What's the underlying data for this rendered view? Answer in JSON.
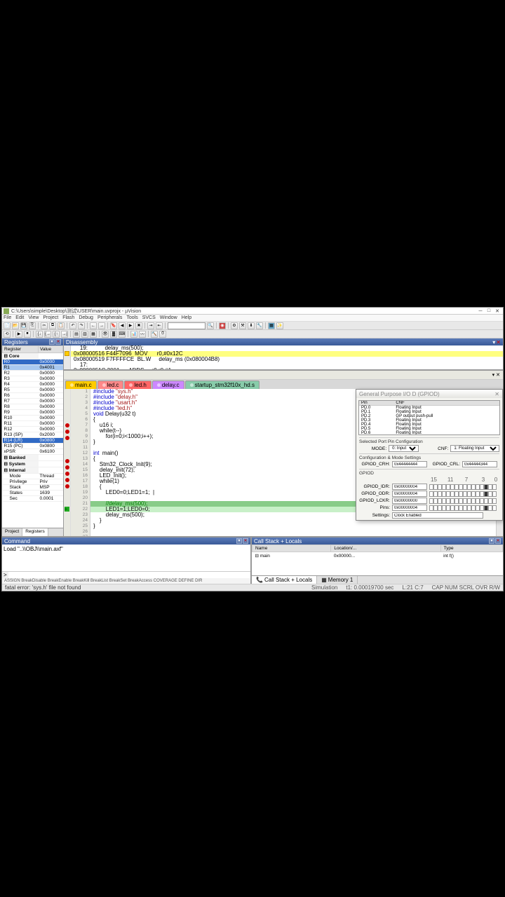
{
  "window": {
    "title": "C:\\Users\\simple\\Desktop\\测试\\USER\\main.uvprojx - µVision"
  },
  "menus": [
    "File",
    "Edit",
    "View",
    "Project",
    "Flash",
    "Debug",
    "Peripherals",
    "Tools",
    "SVCS",
    "Window",
    "Help"
  ],
  "registers_pane": {
    "title": "Registers",
    "columns": [
      "Register",
      "Value"
    ],
    "rows": [
      {
        "name": "Core",
        "value": "",
        "group": true
      },
      {
        "name": "R0",
        "value": "0x0000",
        "sel": true
      },
      {
        "name": "R1",
        "value": "0x4001",
        "sel2": true
      },
      {
        "name": "R2",
        "value": "0x0000"
      },
      {
        "name": "R3",
        "value": "0x0000"
      },
      {
        "name": "R4",
        "value": "0x0000"
      },
      {
        "name": "R5",
        "value": "0x0000"
      },
      {
        "name": "R6",
        "value": "0x0000"
      },
      {
        "name": "R7",
        "value": "0x0000"
      },
      {
        "name": "R8",
        "value": "0x0000"
      },
      {
        "name": "R9",
        "value": "0x0000"
      },
      {
        "name": "R10",
        "value": "0x0000"
      },
      {
        "name": "R11",
        "value": "0x0000"
      },
      {
        "name": "R12",
        "value": "0x0000"
      },
      {
        "name": "R13 (SP)",
        "value": "0x2000"
      },
      {
        "name": "R14 (LR)",
        "value": "0x0800",
        "sel": true
      },
      {
        "name": "R15 (PC)",
        "value": "0x0800"
      },
      {
        "name": "xPSR",
        "value": "0x6100"
      },
      {
        "name": "Banked",
        "value": "",
        "group": true
      },
      {
        "name": "System",
        "value": "",
        "group": true
      },
      {
        "name": "Internal",
        "value": "",
        "group": true
      },
      {
        "name": "Mode",
        "value": "Thread",
        "indent": true
      },
      {
        "name": "Privilege",
        "value": "Priv",
        "indent": true
      },
      {
        "name": "Stack",
        "value": "MSP",
        "indent": true
      },
      {
        "name": "States",
        "value": "1639",
        "indent": true
      },
      {
        "name": "Sec",
        "value": "0.0001",
        "indent": true
      }
    ],
    "tabs": [
      "Project",
      "Registers"
    ],
    "active_tab": 1
  },
  "disassembly": {
    "title": "Disassembly",
    "lines": [
      {
        "text": "    19:           delay_ms(500);"
      },
      {
        "text": "0x08000516 F44F7096  MOV      r0,#0x12C",
        "hl": true,
        "arrow": true
      },
      {
        "text": "0x08000519 F7FFFFCE  BL.W     delay_ms (0x080004B8)"
      },
      {
        "text": "    17:           ",
        "mono": true
      },
      {
        "text": "0x0800051C 3001      ADDS     r0,r0,#1"
      }
    ]
  },
  "editor_tabs": [
    {
      "label": "main.c",
      "color": "#ffcc00",
      "active": true
    },
    {
      "label": "led.c",
      "color": "#ff8888"
    },
    {
      "label": "led.h",
      "color": "#ff6666"
    },
    {
      "label": "delay.c",
      "color": "#cc88ff"
    },
    {
      "label": "startup_stm32f10x_hd.s",
      "color": "#88ccaa"
    }
  ],
  "code": {
    "tab_header": "",
    "lines": [
      {
        "n": 1,
        "t": "#include \"sys.h\"",
        "kw": "#include",
        "str": "\"sys.h\"",
        "bp": false
      },
      {
        "n": 2,
        "t": "#include \"delay.h\"",
        "kw": "#include",
        "str": "\"delay.h\""
      },
      {
        "n": 3,
        "t": "#include \"usart.h\"",
        "kw": "#include",
        "str": "\"usart.h\""
      },
      {
        "n": 4,
        "t": "#include \"led.h\"",
        "kw": "#include",
        "str": "\"led.h\""
      },
      {
        "n": 5,
        "t": "void Delay(u32 t)",
        "kw": "void"
      },
      {
        "n": 6,
        "t": "{"
      },
      {
        "n": 7,
        "t": "    u16 i;",
        "bp": true
      },
      {
        "n": 8,
        "t": "    while(t--)",
        "bp": true
      },
      {
        "n": 9,
        "t": "        for(i=0;i<1000;i++);",
        "bp": true
      },
      {
        "n": 10,
        "t": "}"
      },
      {
        "n": 11,
        "t": ""
      },
      {
        "n": 12,
        "t": "int  main()",
        "kw": "int"
      },
      {
        "n": 13,
        "t": "{",
        "bp": true
      },
      {
        "n": 14,
        "t": "    Stm32_Clock_Init(9);",
        "bp": true
      },
      {
        "n": 15,
        "t": "    delay_init(72);",
        "bp": true
      },
      {
        "n": 16,
        "t": "    LED_Init();",
        "bp": true
      },
      {
        "n": 17,
        "t": "    while(1)",
        "bp": true
      },
      {
        "n": 18,
        "t": "    {"
      },
      {
        "n": 19,
        "t": "        LED0=0;LED1=1;  |"
      },
      {
        "n": 20,
        "t": ""
      },
      {
        "n": 21,
        "t": "        //delay_ms(500);",
        "cm": true,
        "hl": "darkgreen",
        "arrow": true
      },
      {
        "n": 22,
        "t": "        LED1=1;LED0=0;",
        "hl": "green"
      },
      {
        "n": 23,
        "t": "        delay_ms(500);"
      },
      {
        "n": 24,
        "t": "    }"
      },
      {
        "n": 25,
        "t": "}"
      },
      {
        "n": 26,
        "t": ""
      },
      {
        "n": 27,
        "t": ""
      }
    ]
  },
  "command_pane": {
    "title": "Command",
    "body": "Load \"..\\\\OBJ\\\\main.axf\"",
    "prompt": ">",
    "hint": "ASSIGN BreakDisable BreakEnable BreakKill BreakList BreakSet BreakAccess COVERAGE DEFINE DIR",
    "error": "fatal error: 'sys.h' file not found"
  },
  "callstack": {
    "title": "Call Stack + Locals",
    "columns": [
      "Name",
      "Location/...",
      "Type"
    ],
    "rows": [
      {
        "name": "⊟ main",
        "loc": "0x00000...",
        "type": "int f()"
      }
    ],
    "tabs": [
      "Call Stack + Locals",
      "Memory 1"
    ],
    "active_tab": 0
  },
  "statusbar": {
    "left": "",
    "sim": "Simulation",
    "time": "t1: 0.00019700 sec",
    "pos": "L:21 C:7",
    "caps": "CAP NUM SCRL OVR R/W"
  },
  "gpio": {
    "title": "General Purpose I/O D (GPIOD)",
    "list_cols": [
      "Pin",
      "CNF"
    ],
    "list": [
      {
        "pin": "PD.0",
        "cnf": "Floating Input"
      },
      {
        "pin": "PD.1",
        "cnf": "Floating Input"
      },
      {
        "pin": "PD.2",
        "cnf": "GP output push-pull"
      },
      {
        "pin": "PD.3",
        "cnf": "Floating Input"
      },
      {
        "pin": "PD.4",
        "cnf": "Floating Input"
      },
      {
        "pin": "PD.5",
        "cnf": "Floating Input"
      },
      {
        "pin": "PD.6",
        "cnf": "Floating Input"
      },
      {
        "pin": "PD.7",
        "cnf": "Floating Input"
      }
    ],
    "sel_section": "Selected Port Pin Configuration",
    "mode_label": "MODE:",
    "mode_val": "0: Input",
    "cnf_label": "CNF:",
    "cnf_val": "1: Floating Input",
    "reg_section": "Configuration & Mode Settings",
    "crh_label": "GPIOD_CRH:",
    "crh_val": "0x44444444",
    "crl_label": "GPIOD_CRL:",
    "crl_val": "0x44444344",
    "gpiod_section": "GPIOD",
    "idr_label": "GPIOD_IDR:",
    "idr_val": "0x00000004",
    "odr_label": "GPIOD_ODR:",
    "odr_val": "0x00000004",
    "lckr_label": "GPIOD_LCKR:",
    "lckr_val": "0x00000000",
    "pins_label": "Pins:",
    "pins_val": "0x00000004",
    "settings_label": "Settings:",
    "settings_val": "Clock Enabled",
    "bit_labels": [
      "15",
      "",
      "",
      "",
      "11",
      "",
      "",
      "",
      "7",
      "",
      "",
      "",
      "3",
      "",
      "",
      "0"
    ],
    "idr_bits": [
      0,
      0,
      0,
      0,
      0,
      0,
      0,
      0,
      0,
      0,
      0,
      0,
      0,
      1,
      0,
      0
    ],
    "odr_bits": [
      0,
      0,
      0,
      0,
      0,
      0,
      0,
      0,
      0,
      0,
      0,
      0,
      0,
      1,
      0,
      0
    ],
    "lckr_bits": [
      0,
      0,
      0,
      0,
      0,
      0,
      0,
      0,
      0,
      0,
      0,
      0,
      0,
      0,
      0,
      0
    ],
    "pins_bits": [
      0,
      0,
      0,
      0,
      0,
      0,
      0,
      0,
      0,
      0,
      0,
      0,
      0,
      1,
      0,
      0
    ]
  }
}
